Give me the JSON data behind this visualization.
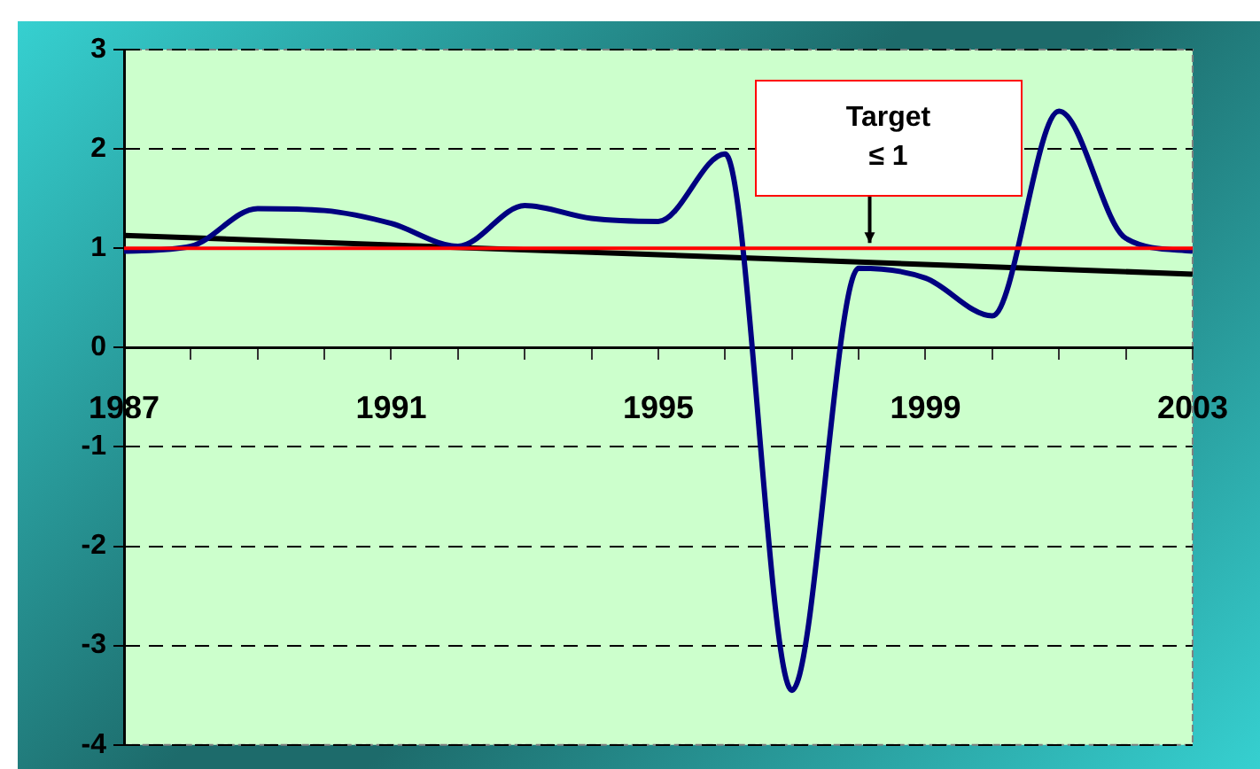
{
  "chart_data": {
    "type": "line",
    "x": [
      1987,
      1988,
      1989,
      1990,
      1991,
      1992,
      1993,
      1994,
      1995,
      1996,
      1997,
      1998,
      1999,
      2000,
      2001,
      2002,
      2003
    ],
    "series": [
      {
        "color": "#000080",
        "values": [
          0.97,
          1.02,
          1.4,
          1.38,
          1.25,
          1.02,
          1.43,
          1.3,
          1.27,
          1.95,
          -3.45,
          0.8,
          0.7,
          0.32,
          2.38,
          1.1,
          0.97
        ]
      },
      {
        "type": "line",
        "color": "#000000",
        "x": [
          1987,
          2003
        ],
        "values": [
          1.13,
          0.74
        ]
      }
    ],
    "xlim": [
      1987,
      2003
    ],
    "xticks": [
      1987,
      {
        "value": 1988,
        "label": null
      },
      {
        "value": 1989,
        "label": null
      },
      {
        "value": 1990,
        "label": null
      },
      1991,
      {
        "value": 1992,
        "label": null
      },
      {
        "value": 1993,
        "label": null
      },
      {
        "value": 1994,
        "label": null
      },
      1995,
      {
        "value": 1996,
        "label": null
      },
      {
        "value": 1997,
        "label": null
      },
      {
        "value": 1998,
        "label": null
      },
      1999,
      {
        "value": 2000,
        "label": null
      },
      {
        "value": 2001,
        "label": null
      },
      {
        "value": 2002,
        "label": null
      },
      2003
    ],
    "ylim": [
      -4,
      3
    ],
    "yticks": [
      -4,
      -3,
      -2,
      -1,
      0,
      1,
      2,
      3
    ],
    "ref_lines": [
      {
        "axis": "y",
        "value": 1,
        "label": "Target\n≤ 1",
        "color": "#ff0000"
      }
    ],
    "grid": "y",
    "legend": false,
    "marker": "none",
    "line_style": "solid"
  }
}
